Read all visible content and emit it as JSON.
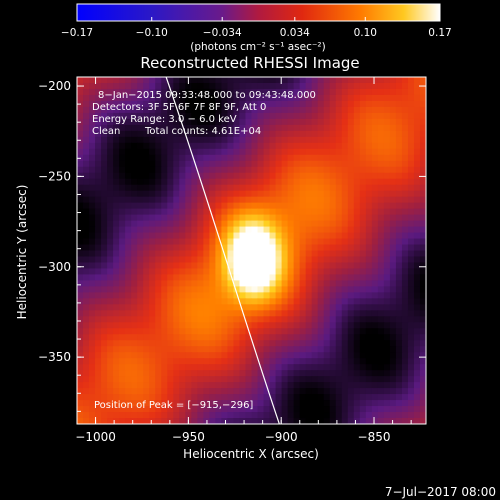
{
  "chart_data": {
    "type": "heatmap",
    "title": "Reconstructed RHESSI Image",
    "xlabel": "Heliocentric X (arcsec)",
    "ylabel": "Heliocentric Y (arcsec)",
    "xlim": [
      -1010,
      -822
    ],
    "ylim": [
      -387,
      -195
    ],
    "xticks": [
      -1000,
      -950,
      -900,
      -850
    ],
    "yticks": [
      -200,
      -250,
      -300,
      -350
    ],
    "xtick_labels": [
      "−1000",
      "−950",
      "−900",
      "−850"
    ],
    "ytick_labels": [
      "−200",
      "−250",
      "−300",
      "−350"
    ],
    "colorbar": {
      "min": -0.17,
      "max": 0.17,
      "tick_values": [
        -0.17,
        -0.1,
        -0.034,
        0.034,
        0.1,
        0.17
      ],
      "tick_labels": [
        "−0.17",
        "−0.10",
        "−0.034",
        "0.034",
        "0.10",
        "0.17"
      ],
      "units": "(photons cm⁻² s⁻¹ asec⁻²)",
      "colors": [
        "#0000ff",
        "#ffffff"
      ]
    },
    "annotations": [
      "8−Jan−2015 09:33:48.000 to 09:43:48.000",
      "Detectors: 3F 5F 6F 7F 8F 9F, Att 0",
      "Energy Range: 3.0 − 6.0 keV",
      "Clean",
      "Total counts: 4.61E+04"
    ],
    "peak_label": "Position of Peak = [−915,−296]",
    "peak": [
      -915,
      -296
    ],
    "limb_curve": [
      [
        -962,
        -195
      ],
      [
        -940,
        -260
      ],
      [
        -923,
        -320
      ],
      [
        -901,
        -387
      ]
    ],
    "colormap_stops": [
      "#000000",
      "#5a1a80",
      "#a02040",
      "#e53015",
      "#ff8000",
      "#ffd020",
      "#ffffff"
    ],
    "background_color": "#000000",
    "date_stamp": "7−Jul−2017 08:00"
  }
}
